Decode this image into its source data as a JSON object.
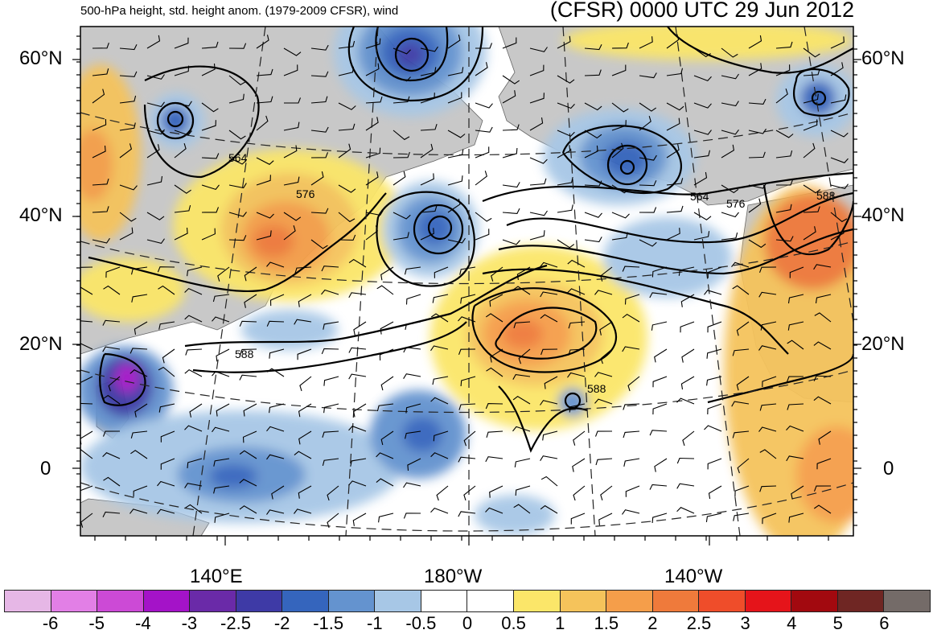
{
  "header": {
    "subtitle": "500-hPa height, std. height anom. (1979-2009 CFSR), wind",
    "title": "(CFSR) 0000 UTC 29 Jun 2012"
  },
  "map": {
    "lat_labels_left": [
      "60°N",
      "40°N",
      "20°N",
      "0"
    ],
    "lat_labels_right": [
      "60°N",
      "40°N",
      "20°N",
      "0"
    ],
    "lon_labels": [
      "140°E",
      "180°W",
      "140°W"
    ],
    "contour_labels": [
      "564",
      "576",
      "588",
      "588",
      "564",
      "576",
      "588"
    ],
    "colors": {
      "land": "#c8c8c8",
      "ocean": "#ffffff",
      "contour": "#000000"
    }
  },
  "colorbar": {
    "colors": [
      "#e6b7e6",
      "#e27fe6",
      "#cc4ad6",
      "#a413c8",
      "#6a2aa8",
      "#3e3aa6",
      "#3565bd",
      "#6493cf",
      "#a7c7e6",
      "#ffffff",
      "#ffffff",
      "#fbe669",
      "#f5c35b",
      "#f59e4a",
      "#ef7a3b",
      "#ef4d2a",
      "#e5141a",
      "#a2090f",
      "#6f2623",
      "#746b68"
    ],
    "ticks": [
      "-6",
      "-5",
      "-4",
      "-3",
      "-2.5",
      "-2",
      "-1.5",
      "-1",
      "-0.5",
      "0",
      "0.5",
      "1",
      "1.5",
      "2",
      "2.5",
      "3",
      "4",
      "5",
      "6"
    ]
  }
}
